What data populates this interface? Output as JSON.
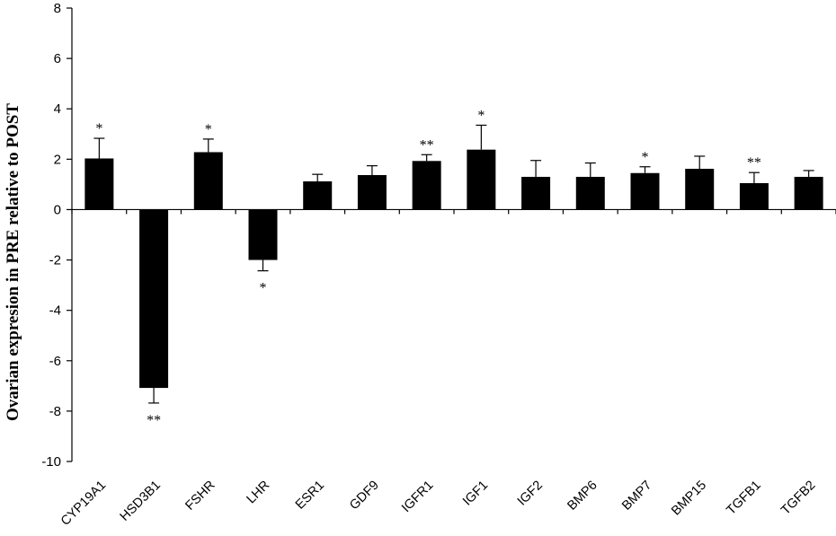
{
  "chart_data": {
    "type": "bar",
    "title": "",
    "xlabel": "",
    "ylabel": "Ovarian expresion in PRE  relative to  POST",
    "ylim": [
      -10,
      8
    ],
    "yticks": [
      -10,
      -8,
      -6,
      -4,
      -2,
      0,
      2,
      4,
      6,
      8
    ],
    "grid": false,
    "bar_color": "#000000",
    "categories": [
      "CYP19A1",
      "HSD3B1",
      "FSHR",
      "LHR",
      "ESR1",
      "GDF9",
      "IGFR1",
      "IGF1",
      "IGF2",
      "BMP6",
      "BMP7",
      "BMP15",
      "TGFB1",
      "TGFB2"
    ],
    "values": [
      2.03,
      -7.08,
      2.28,
      -2.0,
      1.12,
      1.37,
      1.93,
      2.38,
      1.3,
      1.3,
      1.45,
      1.62,
      1.05,
      1.3
    ],
    "errors": [
      0.8,
      0.6,
      0.52,
      0.43,
      0.28,
      0.37,
      0.25,
      0.97,
      0.65,
      0.55,
      0.25,
      0.5,
      0.42,
      0.25
    ],
    "annotations": [
      "*",
      "**",
      "*",
      "*",
      "",
      "",
      "**",
      "*",
      "",
      "",
      "*",
      "",
      "**",
      ""
    ]
  }
}
